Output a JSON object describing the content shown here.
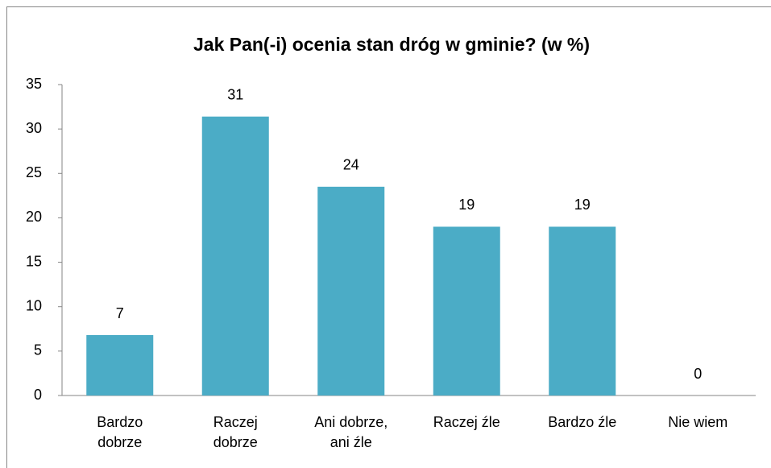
{
  "chart_data": {
    "type": "bar",
    "title": "Jak Pan(-i) ocenia stan dróg w gminie? (w %)",
    "categories": [
      "Bardzo dobrze",
      "Raczej dobrze",
      "Ani dobrze, ani źle",
      "Raczej źle",
      "Bardzo źle",
      "Nie wiem"
    ],
    "values": [
      6.8,
      31.4,
      23.5,
      19,
      19,
      0
    ],
    "value_labels": [
      "7",
      "31",
      "24",
      "19",
      "19",
      "0"
    ],
    "color": "#4bacc6",
    "ylim": [
      0,
      35
    ],
    "yticks": [
      0,
      5,
      10,
      15,
      20,
      25,
      30,
      35
    ],
    "grid": false
  }
}
